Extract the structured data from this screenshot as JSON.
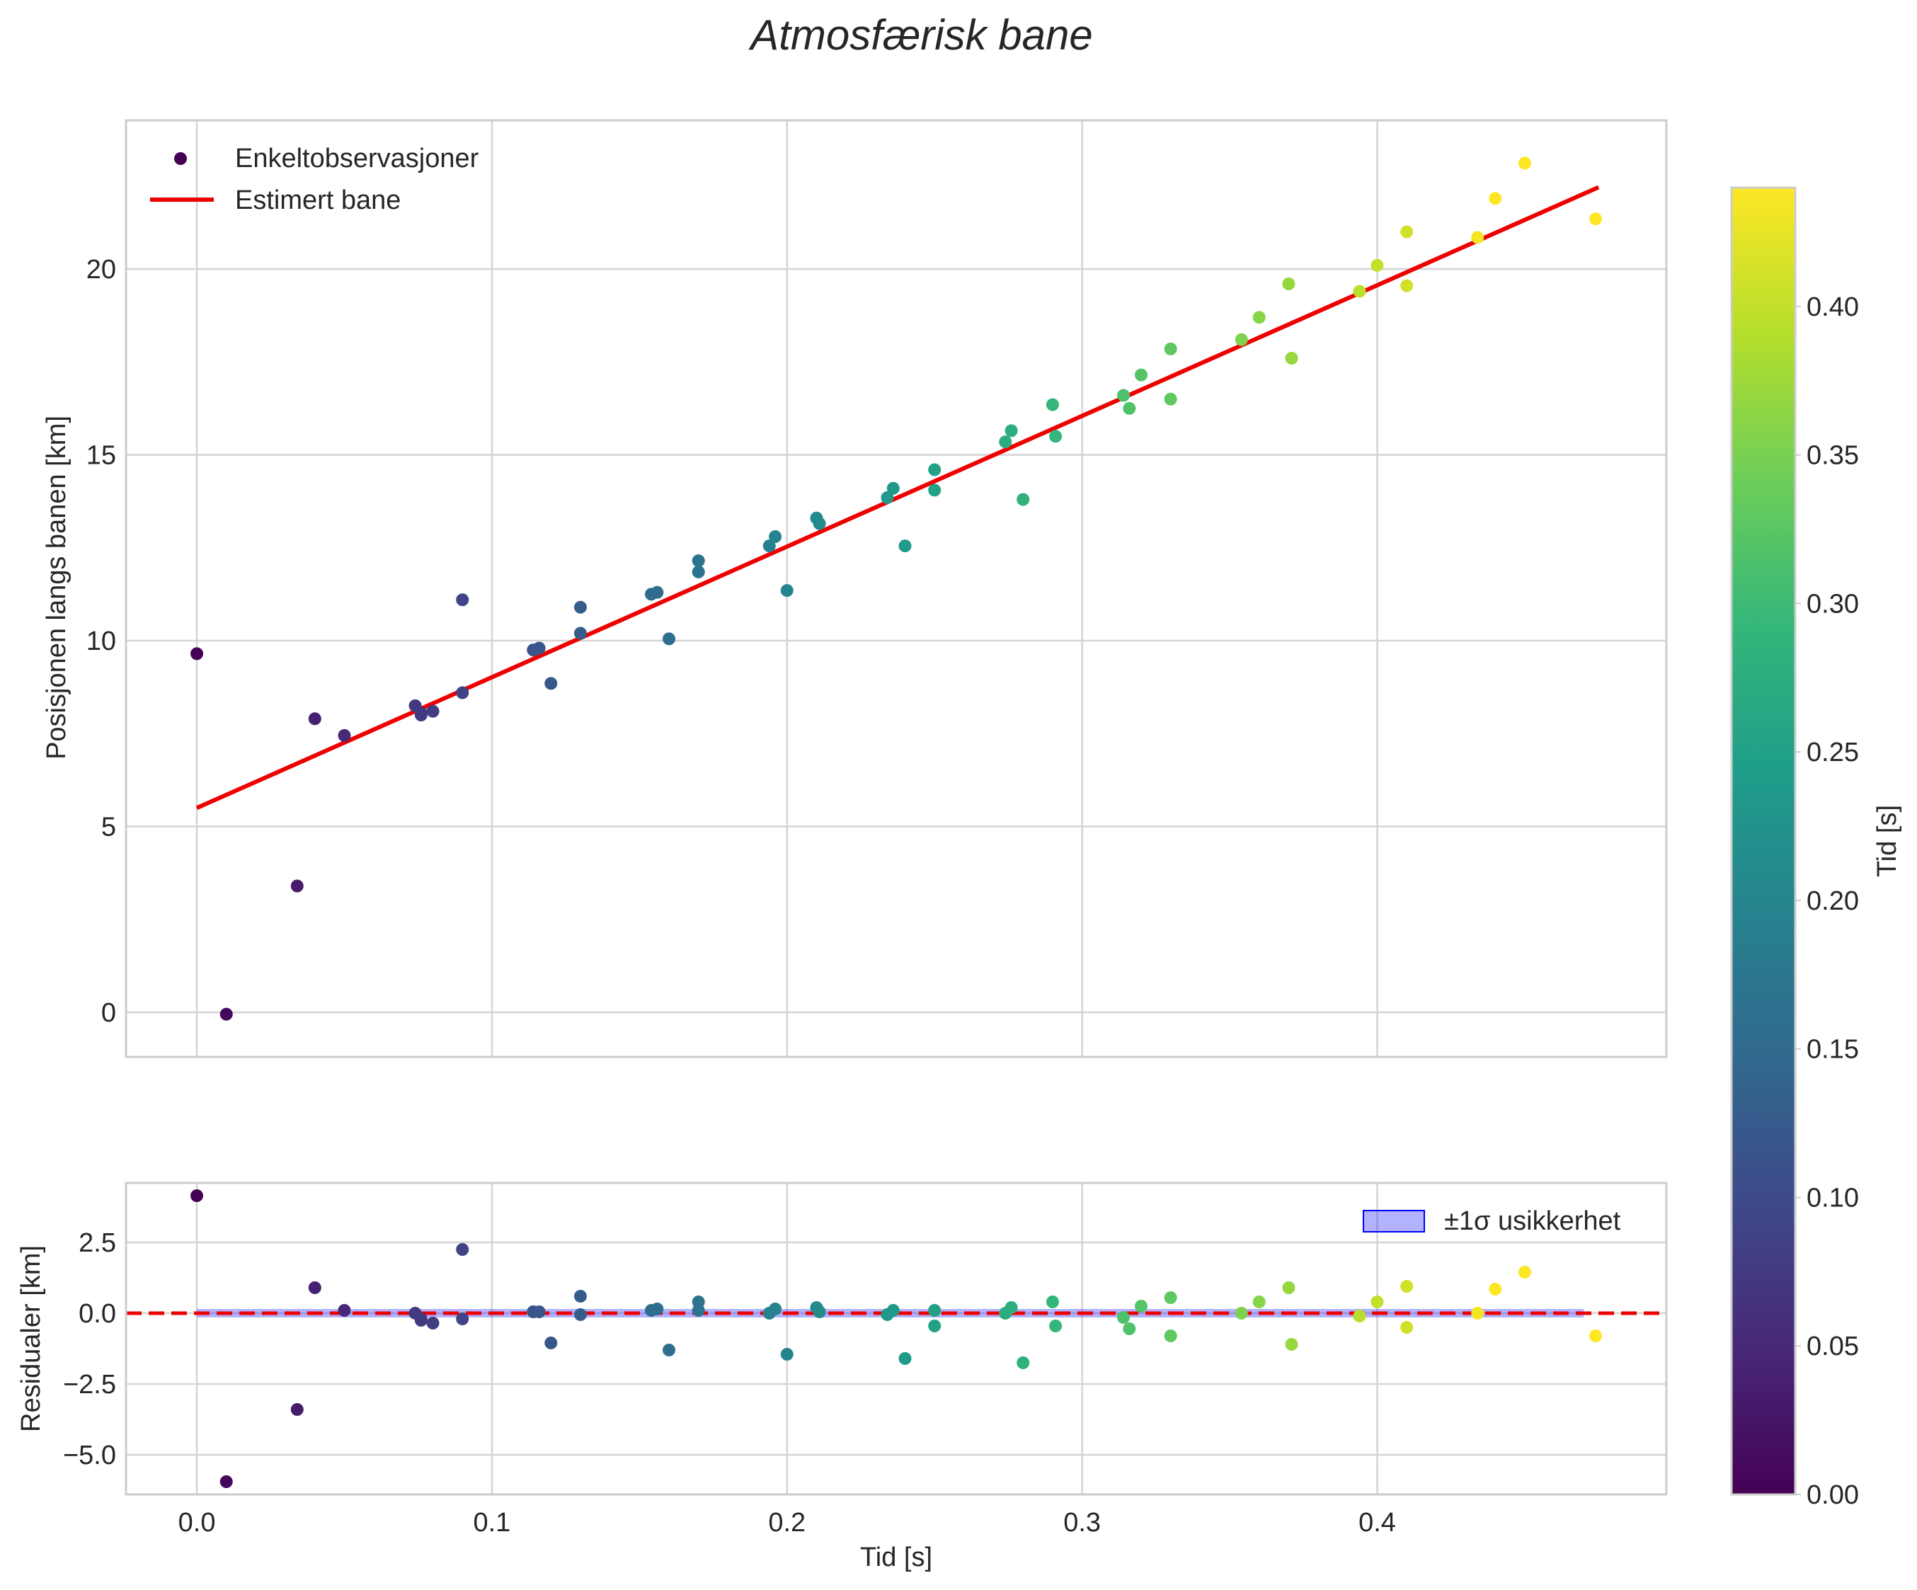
{
  "chart_data": {
    "type": "scatter",
    "title": "Atmosfærisk bane",
    "colormap": "viridis",
    "colormap_stops": [
      "#440154",
      "#482878",
      "#3e4989",
      "#31688e",
      "#26828e",
      "#1f9e89",
      "#35b779",
      "#6ece58",
      "#b5de2b",
      "#fde725"
    ],
    "colorbar": {
      "label": "Tid [s]",
      "range": [
        0,
        0.44
      ],
      "ticks": [
        0.0,
        0.05,
        0.1,
        0.15,
        0.2,
        0.25,
        0.3,
        0.35,
        0.4
      ],
      "tick_labels": [
        "0.00",
        "0.05",
        "0.10",
        "0.15",
        "0.20",
        "0.25",
        "0.30",
        "0.35",
        "0.40"
      ]
    },
    "shared_x": {
      "xlabel": "Tid [s]",
      "xlim": [
        -0.024,
        0.498
      ],
      "ticks": [
        0.0,
        0.1,
        0.2,
        0.3,
        0.4
      ],
      "tick_labels": [
        "0.0",
        "0.1",
        "0.2",
        "0.3",
        "0.4"
      ]
    },
    "main_panel": {
      "ylabel": "Posisjonen langs banen [km]",
      "ylim": [
        -1.2,
        24.0
      ],
      "yticks": [
        0,
        5,
        10,
        15,
        20
      ],
      "ytick_labels": [
        "0",
        "5",
        "10",
        "15",
        "20"
      ],
      "grid": true,
      "legend_position": "upper-left",
      "scatter_label": "Enkeltobservasjoner",
      "line_label": "Estimert bane",
      "line_color": "#ee0000",
      "fit_line": {
        "x": [
          0.0,
          0.475
        ],
        "y": [
          5.5,
          22.2
        ]
      },
      "points": [
        {
          "t": 0.0,
          "y": 9.65
        },
        {
          "t": 0.01,
          "y": -0.05
        },
        {
          "t": 0.034,
          "y": 3.4
        },
        {
          "t": 0.04,
          "y": 7.9
        },
        {
          "t": 0.05,
          "y": 7.45
        },
        {
          "t": 0.074,
          "y": 8.25
        },
        {
          "t": 0.076,
          "y": 8.05
        },
        {
          "t": 0.076,
          "y": 8.0
        },
        {
          "t": 0.08,
          "y": 8.1
        },
        {
          "t": 0.09,
          "y": 8.6
        },
        {
          "t": 0.09,
          "y": 11.1
        },
        {
          "t": 0.114,
          "y": 9.75
        },
        {
          "t": 0.116,
          "y": 9.8
        },
        {
          "t": 0.12,
          "y": 8.85
        },
        {
          "t": 0.13,
          "y": 10.2
        },
        {
          "t": 0.13,
          "y": 10.9
        },
        {
          "t": 0.154,
          "y": 11.25
        },
        {
          "t": 0.156,
          "y": 11.3
        },
        {
          "t": 0.16,
          "y": 10.05
        },
        {
          "t": 0.17,
          "y": 11.85
        },
        {
          "t": 0.17,
          "y": 12.15
        },
        {
          "t": 0.194,
          "y": 12.55
        },
        {
          "t": 0.196,
          "y": 12.8
        },
        {
          "t": 0.2,
          "y": 11.35
        },
        {
          "t": 0.21,
          "y": 13.3
        },
        {
          "t": 0.211,
          "y": 13.15
        },
        {
          "t": 0.234,
          "y": 13.85
        },
        {
          "t": 0.236,
          "y": 14.1
        },
        {
          "t": 0.24,
          "y": 12.55
        },
        {
          "t": 0.25,
          "y": 14.05
        },
        {
          "t": 0.25,
          "y": 14.6
        },
        {
          "t": 0.274,
          "y": 15.35
        },
        {
          "t": 0.276,
          "y": 15.65
        },
        {
          "t": 0.28,
          "y": 13.8
        },
        {
          "t": 0.29,
          "y": 16.35
        },
        {
          "t": 0.291,
          "y": 15.5
        },
        {
          "t": 0.314,
          "y": 16.6
        },
        {
          "t": 0.316,
          "y": 16.25
        },
        {
          "t": 0.32,
          "y": 17.15
        },
        {
          "t": 0.33,
          "y": 16.5
        },
        {
          "t": 0.33,
          "y": 17.85
        },
        {
          "t": 0.354,
          "y": 18.1
        },
        {
          "t": 0.36,
          "y": 18.7
        },
        {
          "t": 0.37,
          "y": 19.6
        },
        {
          "t": 0.371,
          "y": 17.6
        },
        {
          "t": 0.394,
          "y": 19.4
        },
        {
          "t": 0.4,
          "y": 20.1
        },
        {
          "t": 0.41,
          "y": 21.0
        },
        {
          "t": 0.41,
          "y": 19.55
        },
        {
          "t": 0.434,
          "y": 20.85
        },
        {
          "t": 0.44,
          "y": 21.9
        },
        {
          "t": 0.45,
          "y": 22.85
        },
        {
          "t": 0.474,
          "y": 21.35
        }
      ]
    },
    "residual_panel": {
      "ylabel": "Residualer [km]",
      "ylim": [
        -6.4,
        4.6
      ],
      "yticks": [
        -5.0,
        -2.5,
        0.0,
        2.5
      ],
      "ytick_labels": [
        "−5.0",
        "−2.5",
        "0.0",
        "2.5"
      ],
      "grid": true,
      "band_label": "±1σ usikkerhet",
      "band_color": "#0000ff",
      "band_range": [
        -0.15,
        0.15
      ],
      "band_x": [
        0.0,
        0.47
      ],
      "zero_line_color": "#ee0000",
      "legend_position": "upper-right",
      "points": [
        {
          "t": 0.0,
          "r": 4.15
        },
        {
          "t": 0.01,
          "r": -5.95
        },
        {
          "t": 0.034,
          "r": -3.4
        },
        {
          "t": 0.04,
          "r": 0.9
        },
        {
          "t": 0.05,
          "r": 0.1
        },
        {
          "t": 0.074,
          "r": 0.0
        },
        {
          "t": 0.076,
          "r": -0.2
        },
        {
          "t": 0.076,
          "r": -0.25
        },
        {
          "t": 0.08,
          "r": -0.35
        },
        {
          "t": 0.09,
          "r": -0.2
        },
        {
          "t": 0.09,
          "r": 2.25
        },
        {
          "t": 0.114,
          "r": 0.05
        },
        {
          "t": 0.116,
          "r": 0.05
        },
        {
          "t": 0.12,
          "r": -1.05
        },
        {
          "t": 0.13,
          "r": -0.05
        },
        {
          "t": 0.13,
          "r": 0.6
        },
        {
          "t": 0.154,
          "r": 0.1
        },
        {
          "t": 0.156,
          "r": 0.15
        },
        {
          "t": 0.16,
          "r": -1.3
        },
        {
          "t": 0.17,
          "r": 0.1
        },
        {
          "t": 0.17,
          "r": 0.4
        },
        {
          "t": 0.194,
          "r": 0.0
        },
        {
          "t": 0.196,
          "r": 0.15
        },
        {
          "t": 0.2,
          "r": -1.45
        },
        {
          "t": 0.21,
          "r": 0.2
        },
        {
          "t": 0.211,
          "r": 0.05
        },
        {
          "t": 0.234,
          "r": -0.05
        },
        {
          "t": 0.236,
          "r": 0.1
        },
        {
          "t": 0.24,
          "r": -1.6
        },
        {
          "t": 0.25,
          "r": -0.45
        },
        {
          "t": 0.25,
          "r": 0.1
        },
        {
          "t": 0.274,
          "r": 0.0
        },
        {
          "t": 0.276,
          "r": 0.2
        },
        {
          "t": 0.28,
          "r": -1.75
        },
        {
          "t": 0.29,
          "r": 0.4
        },
        {
          "t": 0.291,
          "r": -0.45
        },
        {
          "t": 0.314,
          "r": -0.15
        },
        {
          "t": 0.316,
          "r": -0.55
        },
        {
          "t": 0.32,
          "r": 0.25
        },
        {
          "t": 0.33,
          "r": -0.8
        },
        {
          "t": 0.33,
          "r": 0.55
        },
        {
          "t": 0.354,
          "r": 0.0
        },
        {
          "t": 0.36,
          "r": 0.4
        },
        {
          "t": 0.37,
          "r": 0.9
        },
        {
          "t": 0.371,
          "r": -1.1
        },
        {
          "t": 0.394,
          "r": -0.1
        },
        {
          "t": 0.4,
          "r": 0.4
        },
        {
          "t": 0.41,
          "r": 0.95
        },
        {
          "t": 0.41,
          "r": -0.5
        },
        {
          "t": 0.434,
          "r": 0.0
        },
        {
          "t": 0.44,
          "r": 0.85
        },
        {
          "t": 0.45,
          "r": 1.45
        },
        {
          "t": 0.474,
          "r": -0.8
        }
      ]
    }
  }
}
